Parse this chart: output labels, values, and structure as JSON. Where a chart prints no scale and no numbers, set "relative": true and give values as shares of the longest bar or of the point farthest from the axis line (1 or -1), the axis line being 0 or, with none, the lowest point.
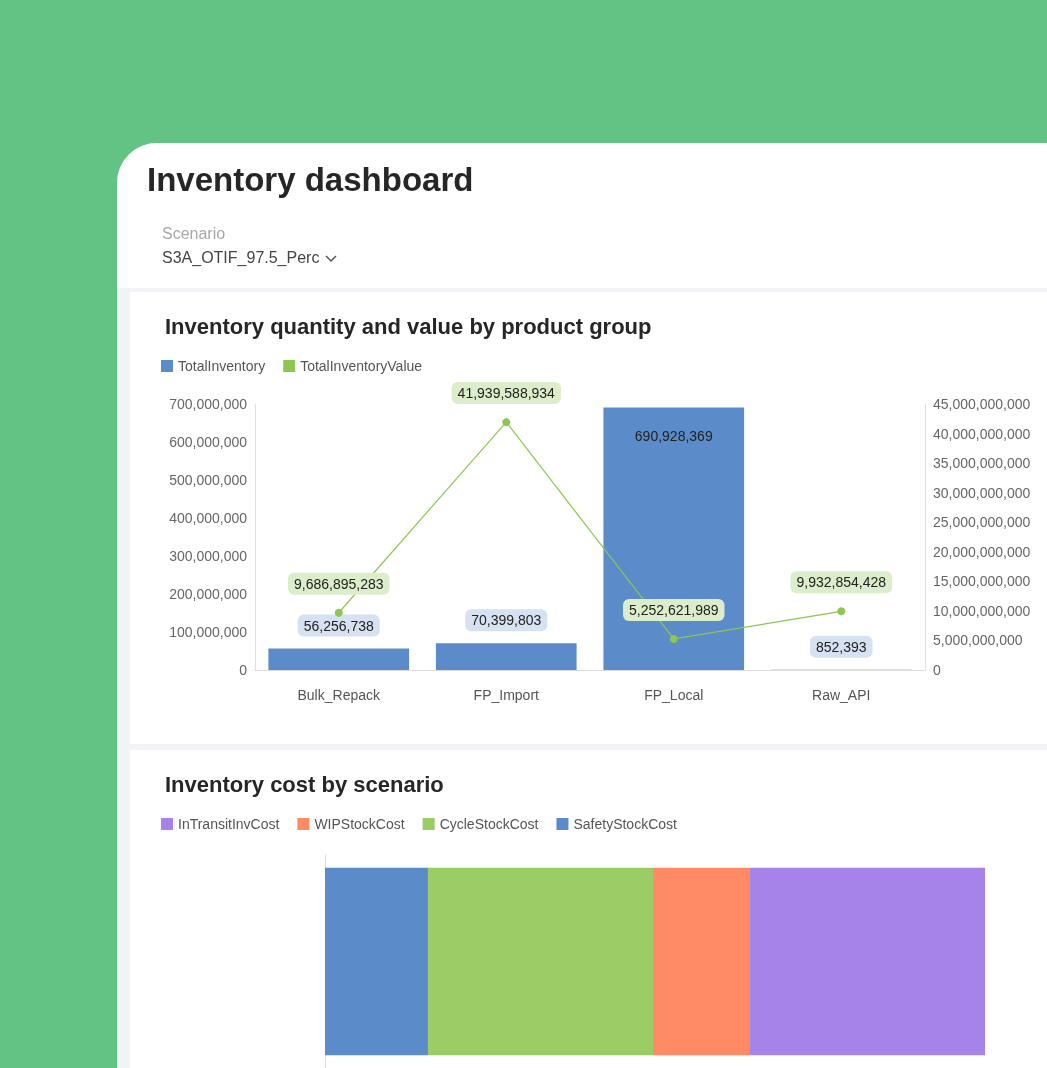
{
  "chart_data": [
    {
      "type": "other",
      "title": "Inventory dashboard",
      "annotations": [
        "Scenario",
        "S3A_OTIF_97.5_Perc"
      ]
    },
    {
      "type": "bar",
      "title": "Inventory quantity and value by product group",
      "categories": [
        "Bulk_Repack",
        "FP_Import",
        "FP_Local",
        "Raw_API"
      ],
      "series": [
        {
          "name": "TotalInventory",
          "color": "#5b8bc9",
          "values": [
            56256738,
            70399803,
            690928369,
            852393
          ],
          "value_labels": [
            "56,256,738",
            "70,399,803",
            "690,928,369",
            "852,393"
          ]
        },
        {
          "name": "TotalInventoryValue",
          "type": "line",
          "axis": "y2",
          "color": "#8cc751",
          "values": [
            9686895283,
            41939588934,
            5252621989,
            9932854428
          ],
          "value_labels": [
            "9,686,895,283",
            "41,939,588,934",
            "5,252,621,989",
            "9,932,854,428"
          ]
        }
      ],
      "ylim": [
        0,
        700000000
      ],
      "yticks": [
        0,
        {
          "value": 100000000,
          "label": "100,000,000"
        },
        {
          "value": 200000000,
          "label": "200,000,000"
        },
        {
          "value": 300000000,
          "label": "300,000,000"
        },
        {
          "value": 400000000,
          "label": "400,000,000"
        },
        {
          "value": 500000000,
          "label": "500,000,000"
        },
        {
          "value": 600000000,
          "label": "600,000,000"
        },
        {
          "value": 700000000,
          "label": "700,000,000"
        }
      ],
      "y2lim": [
        0,
        45000000000
      ],
      "y2ticks": [
        0,
        {
          "value": 5000000000,
          "label": "5,000,000,000"
        },
        {
          "value": 10000000000,
          "label": "10,000,000,000"
        },
        {
          "value": 15000000000,
          "label": "15,000,000,000"
        },
        {
          "value": 20000000000,
          "label": "20,000,000,000"
        },
        {
          "value": 25000000000,
          "label": "25,000,000,000"
        },
        {
          "value": 30000000000,
          "label": "30,000,000,000"
        },
        {
          "value": 35000000000,
          "label": "35,000,000,000"
        },
        {
          "value": 40000000000,
          "label": "40,000,000,000"
        },
        {
          "value": 45000000000,
          "label": "45,000,000,000"
        }
      ],
      "legend": "top left",
      "marker": "circle"
    },
    {
      "type": "bar",
      "title": "Inventory cost by scenario",
      "orientation": "horizontal",
      "stacked": true,
      "relative": true,
      "categories": [
        null
      ],
      "series": [
        {
          "name": "SafetyStockCost",
          "color": "#5b8bc9",
          "values": [
            0.156
          ]
        },
        {
          "name": "CycleStockCost",
          "color": "#9ccc65",
          "values": [
            0.341
          ]
        },
        {
          "name": "WIPStockCost",
          "color": "#ff8a65",
          "values": [
            0.147
          ]
        },
        {
          "name": "InTransitInvCost",
          "color": "#a683e8",
          "values": [
            0.356
          ]
        }
      ],
      "legend": "top left"
    }
  ]
}
